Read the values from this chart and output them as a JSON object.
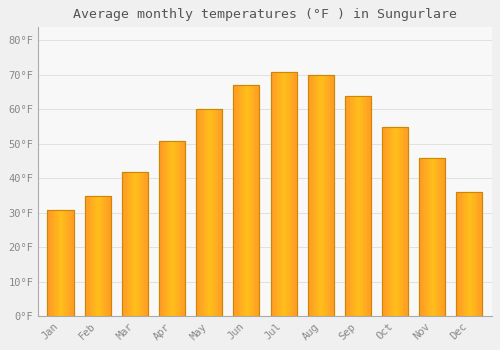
{
  "title": "Average monthly temperatures (°F ) in Sungurlare",
  "months": [
    "Jan",
    "Feb",
    "Mar",
    "Apr",
    "May",
    "Jun",
    "Jul",
    "Aug",
    "Sep",
    "Oct",
    "Nov",
    "Dec"
  ],
  "values": [
    31,
    35,
    42,
    51,
    60,
    67,
    71,
    70,
    64,
    55,
    46,
    36
  ],
  "bar_color": "#FFA500",
  "bar_edge_color": "#E08000",
  "background_color": "#F0F0F0",
  "plot_bg_color": "#F8F8F8",
  "grid_color": "#DDDDDD",
  "yticks": [
    0,
    10,
    20,
    30,
    40,
    50,
    60,
    70,
    80
  ],
  "ylim": [
    0,
    84
  ],
  "tick_label_color": "#888888",
  "title_color": "#555555",
  "title_fontsize": 9.5,
  "tick_fontsize": 7.5,
  "font_family": "monospace",
  "spine_color": "#AAAAAA",
  "bar_width": 0.7
}
